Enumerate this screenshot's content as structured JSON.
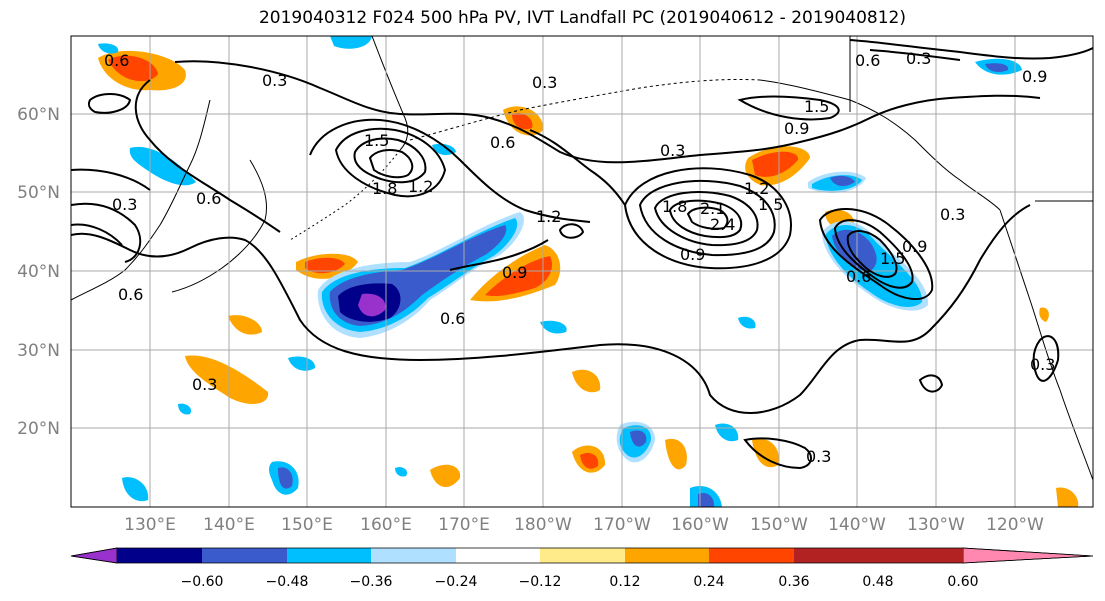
{
  "title": "2019040312 F024 500 hPa PV, IVT Landfall PC (2019040612 - 2019040812)",
  "lat_labels": [
    "60°N",
    "50°N",
    "40°N",
    "30°N",
    "20°N"
  ],
  "lon_labels": [
    "130°E",
    "140°E",
    "150°E",
    "160°E",
    "170°E",
    "180°W",
    "170°W",
    "160°W",
    "150°W",
    "140°W",
    "130°W",
    "120°W"
  ],
  "colorbar": {
    "labels": [
      "-0.60",
      "-0.48",
      "-0.36",
      "-0.24",
      "-0.12",
      "0.12",
      "0.24",
      "0.36",
      "0.48",
      "0.60"
    ],
    "colors": [
      "#9932cc",
      "#00008b",
      "#3a5bcc",
      "#00bfff",
      "#b0e0ff",
      "#ffffff",
      "#ffeb8a",
      "#ffa500",
      "#ff4500",
      "#b22222",
      "#ff88b0"
    ],
    "extend": "both"
  },
  "contour_labels": [
    "0.6",
    "0.3",
    "0.3",
    "0.6",
    "1.5",
    "1.8",
    "1.2",
    "0.6",
    "0.3",
    "1.5",
    "0.9",
    "0.6",
    "0.3",
    "1.2",
    "0.9",
    "0.6",
    "1.8",
    "2.1",
    "2.4",
    "0.9",
    "1.2",
    "1.5",
    "1.5",
    "0.6",
    "0.9",
    "0.3",
    "0.3",
    "0.9",
    "0.3",
    "0.3",
    "0.6",
    "0.3"
  ]
}
